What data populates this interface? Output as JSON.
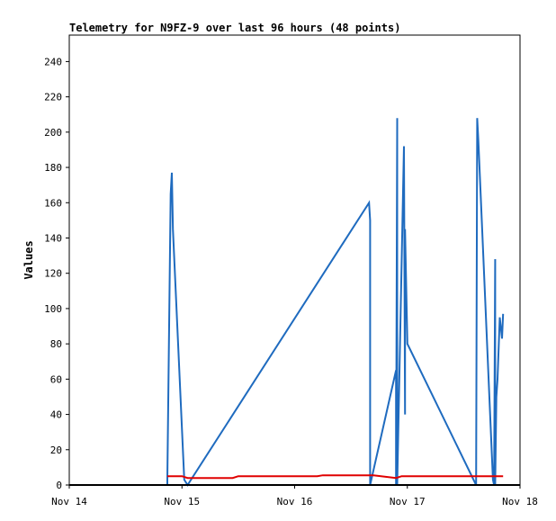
{
  "chart_data": {
    "type": "line",
    "title": "Telemetry for N9FZ-9 over last 96 hours (48 points)",
    "ylabel": "Values",
    "xlabel": "",
    "xlim": [
      0,
      4
    ],
    "ylim": [
      0,
      255
    ],
    "x_ticks": [
      {
        "value": 0,
        "label": "Nov 14"
      },
      {
        "value": 1,
        "label": "Nov 15"
      },
      {
        "value": 2,
        "label": "Nov 16"
      },
      {
        "value": 3,
        "label": "Nov 17"
      },
      {
        "value": 4,
        "label": "Nov 18"
      }
    ],
    "y_ticks": [
      0,
      20,
      40,
      60,
      80,
      100,
      120,
      140,
      160,
      180,
      200,
      220,
      240
    ],
    "grid": false,
    "legend": "none",
    "series": [
      {
        "color": "#1f6bbf",
        "x": [
          0.87,
          0.87,
          0.9,
          0.91,
          0.92,
          1.02,
          1.05,
          2.66,
          2.67,
          2.67,
          2.9,
          2.9,
          2.91,
          2.91,
          2.97,
          2.98,
          2.98,
          3.0,
          3.61,
          3.62,
          3.63,
          3.76,
          3.77,
          3.78,
          3.78,
          3.79,
          3.8,
          3.82,
          3.84,
          3.85
        ],
        "y": [
          0,
          3,
          165,
          177,
          145,
          3,
          0,
          160,
          150,
          0,
          65,
          0,
          208,
          0,
          192,
          40,
          145,
          80,
          0,
          208,
          195,
          3,
          0,
          128,
          0,
          50,
          60,
          95,
          83,
          97
        ]
      },
      {
        "color": "#e00000",
        "x": [
          0.87,
          1.0,
          1.05,
          1.45,
          1.5,
          2.2,
          2.25,
          2.7,
          2.9,
          2.95,
          3.0,
          3.85
        ],
        "y": [
          5,
          5,
          4,
          4,
          5,
          5,
          5.5,
          5.5,
          4,
          5,
          5,
          5
        ]
      },
      {
        "color": "#000000",
        "x": [
          0,
          4
        ],
        "y": [
          0,
          0
        ]
      }
    ]
  }
}
